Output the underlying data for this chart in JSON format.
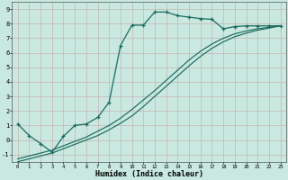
{
  "xlabel": "Humidex (Indice chaleur)",
  "background_color": "#c8e8e0",
  "line_color": "#1a6b60",
  "xlim": [
    -0.5,
    23.5
  ],
  "ylim": [
    -1.5,
    9.5
  ],
  "xticks": [
    0,
    1,
    2,
    3,
    4,
    5,
    6,
    7,
    8,
    9,
    10,
    11,
    12,
    13,
    14,
    15,
    16,
    17,
    18,
    19,
    20,
    21,
    22,
    23
  ],
  "yticks": [
    -1,
    0,
    1,
    2,
    3,
    4,
    5,
    6,
    7,
    8,
    9
  ],
  "line1_x": [
    0,
    1,
    2,
    3,
    4,
    5,
    6,
    7,
    8,
    9,
    10,
    11,
    12,
    13,
    14,
    15,
    16,
    17,
    18,
    19,
    20,
    21,
    22,
    23
  ],
  "line1_y": [
    1.1,
    0.3,
    -0.25,
    -0.85,
    0.25,
    1.0,
    1.1,
    1.55,
    2.6,
    6.5,
    7.9,
    7.9,
    8.8,
    8.8,
    8.55,
    8.45,
    8.35,
    8.3,
    7.65,
    7.8,
    7.85,
    7.85,
    7.85,
    7.85
  ],
  "line2_x": [
    0,
    1,
    2,
    3,
    4,
    5,
    6,
    7,
    8,
    9,
    10,
    11,
    12,
    13,
    14,
    15,
    16,
    17,
    18,
    19,
    20,
    21,
    22,
    23
  ],
  "line2_y": [
    -1.3,
    -1.1,
    -0.9,
    -0.7,
    -0.4,
    -0.1,
    0.2,
    0.6,
    1.0,
    1.5,
    2.1,
    2.75,
    3.4,
    4.1,
    4.8,
    5.5,
    6.1,
    6.6,
    7.0,
    7.3,
    7.5,
    7.65,
    7.75,
    7.85
  ],
  "line3_x": [
    0,
    1,
    2,
    3,
    4,
    5,
    6,
    7,
    8,
    9,
    10,
    11,
    12,
    13,
    14,
    15,
    16,
    17,
    18,
    19,
    20,
    21,
    22,
    23
  ],
  "line3_y": [
    -1.5,
    -1.3,
    -1.1,
    -0.9,
    -0.6,
    -0.3,
    0.0,
    0.3,
    0.7,
    1.15,
    1.65,
    2.3,
    3.0,
    3.7,
    4.4,
    5.1,
    5.75,
    6.3,
    6.75,
    7.1,
    7.35,
    7.55,
    7.7,
    7.85
  ]
}
